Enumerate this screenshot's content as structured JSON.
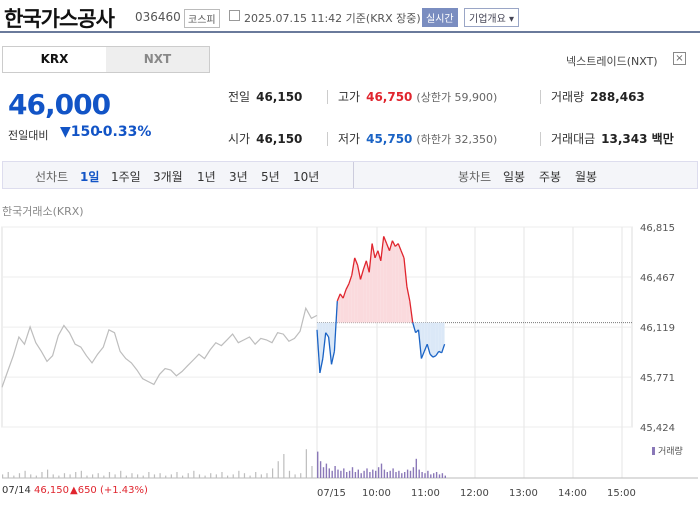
{
  "header": {
    "name": "한국가스공사",
    "code": "036460",
    "market": "코스피",
    "datetime": "2025.07.15 11:42 기준(KRX 장중)",
    "realtime": "실시간",
    "company_info": "기업개요"
  },
  "tabs": [
    "KRX",
    "NXT"
  ],
  "nxt_link": "넥스트레이드(NXT)",
  "price": {
    "current": "46,000",
    "change_label": "전일대비",
    "change": "150",
    "change_pct": "-0.33%"
  },
  "stats": {
    "prev_label": "전일",
    "prev": "46,150",
    "high_label": "고가",
    "high": "46,750",
    "upper_limit": "(상한가 59,900)",
    "volume_label": "거래량",
    "volume": "288,463",
    "open_label": "시가",
    "open": "46,150",
    "low_label": "저가",
    "low": "45,750",
    "lower_limit": "(하한가 32,350)",
    "amount_label": "거래대금",
    "amount": "13,343 백만"
  },
  "period_bar": {
    "line_label": "선차트",
    "line_periods": [
      "1일",
      "1주일",
      "3개월",
      "1년",
      "3년",
      "5년",
      "10년"
    ],
    "candle_label": "봉차트",
    "candle_periods": [
      "일봉",
      "주봉",
      "월봉"
    ]
  },
  "source_label": "한국거래소(KRX)",
  "legend_volume": "거래량",
  "footer": {
    "date": "07/14",
    "price": "46,150",
    "change": "650",
    "pct": "(+1.43%)"
  },
  "colors": {
    "up": "#e0252e",
    "down": "#1a63c5",
    "prev_day": "#bdbdbd"
  },
  "chart_data": {
    "type": "line",
    "yticks": [
      46815,
      46467,
      46119,
      45771,
      45424
    ],
    "ylim": [
      45424,
      46815
    ],
    "xticks": [
      "07/15",
      "10:00",
      "11:00",
      "12:00",
      "13:00",
      "14:00",
      "15:00"
    ],
    "baseline": 46150,
    "prev_day_series": [
      45700,
      45810,
      45920,
      46050,
      46000,
      46120,
      46010,
      45950,
      45880,
      45920,
      46060,
      46130,
      46080,
      46000,
      45980,
      45920,
      45870,
      45930,
      45980,
      46100,
      46080,
      45950,
      45900,
      45870,
      45820,
      45760,
      45740,
      45720,
      45790,
      45830,
      45820,
      45780,
      45810,
      45850,
      45890,
      45930,
      45900,
      45960,
      46010,
      45990,
      46030,
      46070,
      46010,
      46030,
      46050,
      46000,
      46040,
      46030,
      46010,
      46080,
      46070,
      46020,
      46040,
      46090,
      46250,
      46180,
      46200
    ],
    "today_series": [
      46100,
      45800,
      45900,
      46080,
      46050,
      45860,
      45950,
      46300,
      46350,
      46320,
      46380,
      46420,
      46480,
      46600,
      46550,
      46450,
      46520,
      46580,
      46500,
      46700,
      46600,
      46650,
      46580,
      46750,
      46700,
      46650,
      46720,
      46680,
      46700,
      46650,
      46600,
      46400,
      46300,
      46150,
      46080,
      46100,
      45900,
      45950,
      46000,
      45930,
      45910,
      45920,
      45950,
      45940,
      46000
    ],
    "volume_prev": [
      3,
      5,
      2,
      4,
      6,
      3,
      2,
      5,
      7,
      3,
      2,
      4,
      3,
      5,
      6,
      2,
      3,
      4,
      2,
      5,
      3,
      6,
      2,
      4,
      3,
      2,
      5,
      3,
      4,
      2,
      3,
      5,
      2,
      4,
      6,
      3,
      2,
      4,
      3,
      5,
      2,
      3,
      6,
      4,
      2,
      5,
      3,
      4,
      8,
      14,
      20,
      6,
      3,
      4,
      24,
      10,
      5
    ],
    "volume_today": [
      22,
      14,
      9,
      12,
      8,
      6,
      10,
      7,
      6,
      8,
      5,
      6,
      9,
      5,
      7,
      4,
      6,
      8,
      5,
      7,
      6,
      9,
      12,
      7,
      5,
      6,
      8,
      5,
      6,
      4,
      5,
      7,
      6,
      9,
      16,
      7,
      5,
      4,
      6,
      3,
      4,
      5,
      3,
      4,
      2
    ]
  }
}
